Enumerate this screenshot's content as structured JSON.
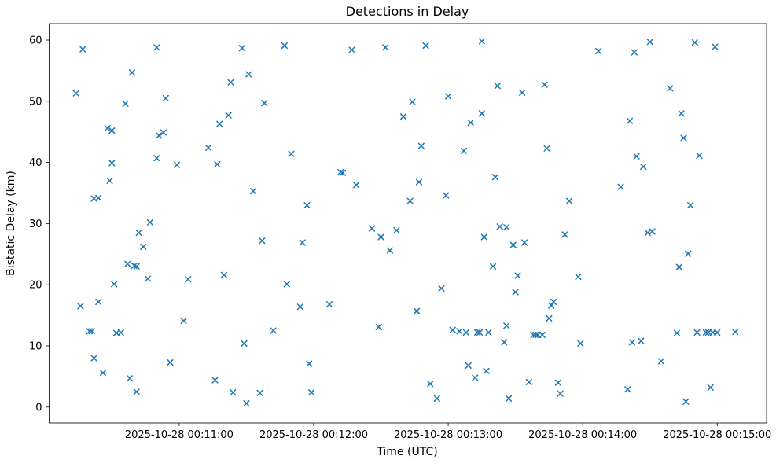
{
  "chart_data": {
    "type": "scatter",
    "title": "Detections in Delay",
    "xlabel": "Time (UTC)",
    "ylabel": "Bistatic Delay (km)",
    "marker": "x",
    "marker_color": "#1f77b4",
    "background_color": "#ffffff",
    "legend": "none",
    "grid": false,
    "x_unit": "seconds after 2025-10-28 00:10:00 UTC",
    "xlim": [
      2,
      322
    ],
    "ylim": [
      -2.6,
      62.7
    ],
    "x_ticks": [
      {
        "value": 60,
        "label": "2025-10-28 00:11:00"
      },
      {
        "value": 120,
        "label": "2025-10-28 00:12:00"
      },
      {
        "value": 180,
        "label": "2025-10-28 00:13:00"
      },
      {
        "value": 240,
        "label": "2025-10-28 00:14:00"
      },
      {
        "value": 300,
        "label": "2025-10-28 00:15:00"
      }
    ],
    "y_ticks": [
      0,
      10,
      20,
      30,
      40,
      50,
      60
    ],
    "points": [
      [
        14,
        51.3
      ],
      [
        16,
        16.5
      ],
      [
        17,
        58.5
      ],
      [
        20,
        12.4
      ],
      [
        21,
        12.4
      ],
      [
        22,
        8.0
      ],
      [
        22,
        34.1
      ],
      [
        24,
        34.2
      ],
      [
        24,
        17.2
      ],
      [
        26,
        5.6
      ],
      [
        28,
        45.6
      ],
      [
        29,
        37.0
      ],
      [
        30,
        39.9
      ],
      [
        30,
        45.2
      ],
      [
        31,
        20.1
      ],
      [
        32,
        12.1
      ],
      [
        34,
        12.2
      ],
      [
        36,
        49.6
      ],
      [
        37,
        23.4
      ],
      [
        38,
        4.7
      ],
      [
        39,
        54.7
      ],
      [
        40,
        23.1
      ],
      [
        41,
        23.0
      ],
      [
        41,
        2.5
      ],
      [
        42,
        28.5
      ],
      [
        44,
        26.2
      ],
      [
        46,
        21.0
      ],
      [
        47,
        30.2
      ],
      [
        50,
        58.8
      ],
      [
        50,
        40.7
      ],
      [
        51,
        44.4
      ],
      [
        53,
        44.9
      ],
      [
        54,
        50.5
      ],
      [
        56,
        7.3
      ],
      [
        59,
        39.6
      ],
      [
        62,
        14.1
      ],
      [
        64,
        20.9
      ],
      [
        73,
        42.4
      ],
      [
        76,
        4.4
      ],
      [
        77,
        39.7
      ],
      [
        78,
        46.3
      ],
      [
        80,
        21.6
      ],
      [
        82,
        47.7
      ],
      [
        83,
        53.1
      ],
      [
        84,
        2.4
      ],
      [
        88,
        58.7
      ],
      [
        89,
        10.4
      ],
      [
        90,
        0.6
      ],
      [
        91,
        54.4
      ],
      [
        93,
        35.3
      ],
      [
        96,
        2.3
      ],
      [
        97,
        27.2
      ],
      [
        98,
        49.7
      ],
      [
        102,
        12.5
      ],
      [
        107,
        59.1
      ],
      [
        108,
        20.1
      ],
      [
        110,
        41.4
      ],
      [
        114,
        16.4
      ],
      [
        115,
        26.9
      ],
      [
        117,
        33.0
      ],
      [
        118,
        7.1
      ],
      [
        119,
        2.4
      ],
      [
        127,
        16.8
      ],
      [
        132,
        38.4
      ],
      [
        133,
        38.3
      ],
      [
        137,
        58.4
      ],
      [
        139,
        36.3
      ],
      [
        146,
        29.2
      ],
      [
        149,
        13.1
      ],
      [
        150,
        27.8
      ],
      [
        152,
        58.8
      ],
      [
        154,
        25.6
      ],
      [
        157,
        28.9
      ],
      [
        160,
        47.5
      ],
      [
        163,
        33.7
      ],
      [
        164,
        49.9
      ],
      [
        166,
        15.7
      ],
      [
        167,
        36.8
      ],
      [
        168,
        42.7
      ],
      [
        170,
        59.1
      ],
      [
        172,
        3.8
      ],
      [
        175,
        1.4
      ],
      [
        177,
        19.4
      ],
      [
        179,
        34.6
      ],
      [
        180,
        50.8
      ],
      [
        182,
        12.6
      ],
      [
        185,
        12.4
      ],
      [
        187,
        41.9
      ],
      [
        188,
        12.2
      ],
      [
        189,
        6.8
      ],
      [
        190,
        46.5
      ],
      [
        192,
        4.8
      ],
      [
        193,
        12.2
      ],
      [
        194,
        12.2
      ],
      [
        195,
        48.0
      ],
      [
        195,
        59.8
      ],
      [
        196,
        27.8
      ],
      [
        197,
        5.9
      ],
      [
        198,
        12.2
      ],
      [
        200,
        23.0
      ],
      [
        201,
        37.6
      ],
      [
        202,
        52.5
      ],
      [
        203,
        29.5
      ],
      [
        205,
        10.6
      ],
      [
        206,
        29.4
      ],
      [
        206,
        13.3
      ],
      [
        207,
        1.4
      ],
      [
        209,
        26.5
      ],
      [
        210,
        18.8
      ],
      [
        211,
        21.5
      ],
      [
        213,
        51.4
      ],
      [
        214,
        26.9
      ],
      [
        216,
        4.1
      ],
      [
        218,
        11.8
      ],
      [
        219,
        11.8
      ],
      [
        220,
        11.8
      ],
      [
        222,
        11.8
      ],
      [
        223,
        52.7
      ],
      [
        224,
        42.3
      ],
      [
        225,
        14.5
      ],
      [
        226,
        16.6
      ],
      [
        227,
        17.2
      ],
      [
        229,
        4.0
      ],
      [
        230,
        2.2
      ],
      [
        232,
        28.2
      ],
      [
        234,
        33.7
      ],
      [
        238,
        21.3
      ],
      [
        239,
        10.4
      ],
      [
        247,
        58.2
      ],
      [
        257,
        36.0
      ],
      [
        260,
        2.9
      ],
      [
        261,
        46.8
      ],
      [
        262,
        10.6
      ],
      [
        263,
        58.0
      ],
      [
        264,
        41.0
      ],
      [
        266,
        10.8
      ],
      [
        267,
        39.3
      ],
      [
        269,
        28.5
      ],
      [
        270,
        59.7
      ],
      [
        271,
        28.7
      ],
      [
        275,
        7.5
      ],
      [
        279,
        52.1
      ],
      [
        282,
        12.1
      ],
      [
        283,
        22.9
      ],
      [
        284,
        48.0
      ],
      [
        285,
        44.0
      ],
      [
        286,
        0.9
      ],
      [
        287,
        25.1
      ],
      [
        288,
        33.0
      ],
      [
        290,
        59.6
      ],
      [
        291,
        12.2
      ],
      [
        292,
        41.1
      ],
      [
        295,
        12.2
      ],
      [
        296,
        12.2
      ],
      [
        297,
        3.2
      ],
      [
        298,
        12.2
      ],
      [
        299,
        58.9
      ],
      [
        300,
        12.2
      ],
      [
        308,
        12.3
      ]
    ]
  }
}
